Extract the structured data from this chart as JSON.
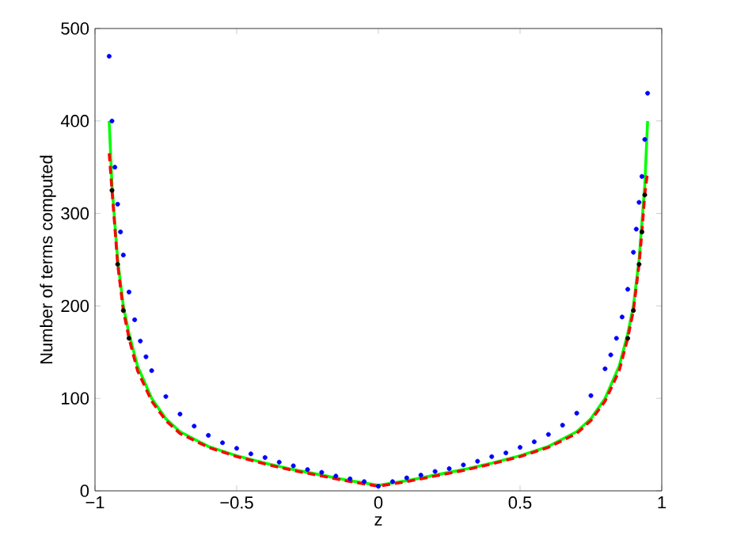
{
  "chart_data": {
    "type": "line",
    "xlabel": "z",
    "ylabel": "Number of terms computed",
    "xlim": [
      -1,
      1
    ],
    "ylim": [
      0,
      500
    ],
    "xticks": [
      {
        "value": -1,
        "label": "−1"
      },
      {
        "value": -0.5,
        "label": "−0.5"
      },
      0,
      0.5,
      1
    ],
    "yticks": [
      0,
      100,
      200,
      300,
      400,
      500
    ],
    "grid": false,
    "series": [
      {
        "type": "scatter",
        "color": "#0000ff",
        "marker": "circle",
        "x": [
          -0.95,
          -0.94,
          -0.93,
          -0.92,
          -0.91,
          -0.9,
          -0.88,
          -0.86,
          -0.84,
          -0.82,
          -0.8,
          -0.75,
          -0.7,
          -0.65,
          -0.6,
          -0.55,
          -0.5,
          -0.45,
          -0.4,
          -0.35,
          -0.3,
          -0.25,
          -0.2,
          -0.15,
          -0.1,
          -0.05,
          0,
          0.05,
          0.1,
          0.15,
          0.2,
          0.25,
          0.3,
          0.35,
          0.4,
          0.45,
          0.5,
          0.55,
          0.6,
          0.65,
          0.7,
          0.75,
          0.8,
          0.82,
          0.84,
          0.86,
          0.88,
          0.9,
          0.91,
          0.92,
          0.93,
          0.94,
          0.95
        ],
        "values": [
          470,
          400,
          350,
          310,
          280,
          255,
          215,
          185,
          162,
          145,
          130,
          102,
          83,
          70,
          60,
          52,
          46,
          40,
          36,
          31,
          27,
          23,
          20,
          16,
          13,
          10,
          5,
          10,
          14,
          17,
          21,
          24,
          28,
          32,
          37,
          41,
          47,
          53,
          61,
          71,
          84,
          103,
          132,
          147,
          165,
          188,
          218,
          258,
          283,
          312,
          340,
          380,
          430
        ]
      },
      {
        "type": "scatter",
        "color": "#000000",
        "marker": "circle",
        "x": [
          -0.94,
          -0.92,
          -0.9,
          -0.88,
          0.88,
          0.9,
          0.92,
          0.93,
          0.94
        ],
        "values": [
          325,
          245,
          195,
          165,
          165,
          195,
          245,
          280,
          320
        ]
      },
      {
        "color": "#00ff00",
        "marker": "none",
        "line_style": "solid",
        "x": [
          -0.95,
          -0.94,
          -0.93,
          -0.92,
          -0.9,
          -0.88,
          -0.85,
          -0.8,
          -0.75,
          -0.7,
          -0.6,
          -0.5,
          -0.4,
          -0.3,
          -0.2,
          -0.1,
          0,
          0.1,
          0.2,
          0.3,
          0.4,
          0.5,
          0.6,
          0.7,
          0.75,
          0.8,
          0.85,
          0.88,
          0.9,
          0.92,
          0.93,
          0.94,
          0.95
        ],
        "values": [
          400,
          330,
          290,
          250,
          200,
          170,
          135,
          100,
          78,
          64,
          48,
          38,
          30,
          23,
          17,
          11,
          6,
          11,
          17,
          23,
          30,
          38,
          48,
          64,
          78,
          100,
          135,
          170,
          200,
          250,
          290,
          330,
          400
        ]
      },
      {
        "color": "#ff0000",
        "marker": "none",
        "line_style": "dashed",
        "x": [
          -0.95,
          -0.94,
          -0.93,
          -0.92,
          -0.9,
          -0.88,
          -0.85,
          -0.8,
          -0.75,
          -0.7,
          -0.6,
          -0.5,
          -0.4,
          -0.3,
          -0.2,
          -0.1,
          0,
          0.1,
          0.2,
          0.3,
          0.4,
          0.5,
          0.6,
          0.7,
          0.75,
          0.8,
          0.85,
          0.88,
          0.9,
          0.92,
          0.93,
          0.94,
          0.95
        ],
        "values": [
          365,
          325,
          285,
          245,
          195,
          165,
          130,
          97,
          76,
          62,
          47,
          37,
          29,
          22,
          16,
          10,
          5,
          10,
          16,
          22,
          29,
          37,
          47,
          62,
          76,
          97,
          130,
          165,
          195,
          245,
          280,
          320,
          345
        ]
      }
    ]
  }
}
